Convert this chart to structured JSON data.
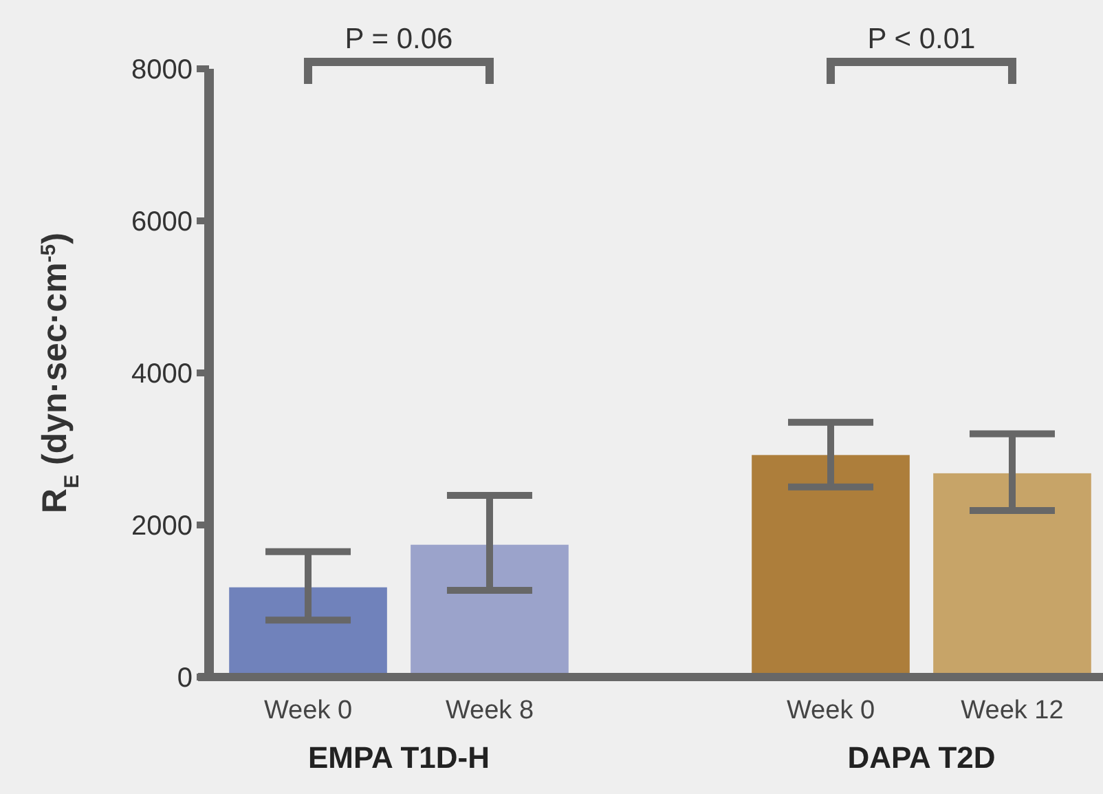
{
  "chart_data": [
    {
      "type": "bar",
      "ylabel": "R$_{E}$ (dyn·sec·cm$^{-5}$)",
      "xlabel": "EMPA T1D-H",
      "categories": [
        "Week 0",
        "Week 8"
      ],
      "values": [
        1180,
        1740
      ],
      "colors": [
        "#7082bb",
        "#9ba3cb"
      ],
      "errors": [
        [
          750,
          1650
        ],
        [
          1140,
          2390
        ]
      ],
      "ylim": [
        0,
        8000
      ],
      "yticks": [
        0,
        2000,
        4000,
        6000,
        8000
      ],
      "annotations": [
        "P = 0.06"
      ]
    },
    {
      "type": "bar",
      "xlabel": "DAPA T2D",
      "categories": [
        "Week 0",
        "Week 12"
      ],
      "values": [
        2920,
        2680
      ],
      "colors": [
        "#ad7e3b",
        "#c7a468"
      ],
      "errors": [
        [
          2500,
          3350
        ],
        [
          2190,
          3200
        ]
      ],
      "ylim": [
        0,
        8000
      ],
      "yticks": [
        0,
        2000,
        4000,
        6000,
        8000
      ],
      "tick_labels": "x",
      "annotations": [
        "P < 0.01"
      ]
    }
  ]
}
